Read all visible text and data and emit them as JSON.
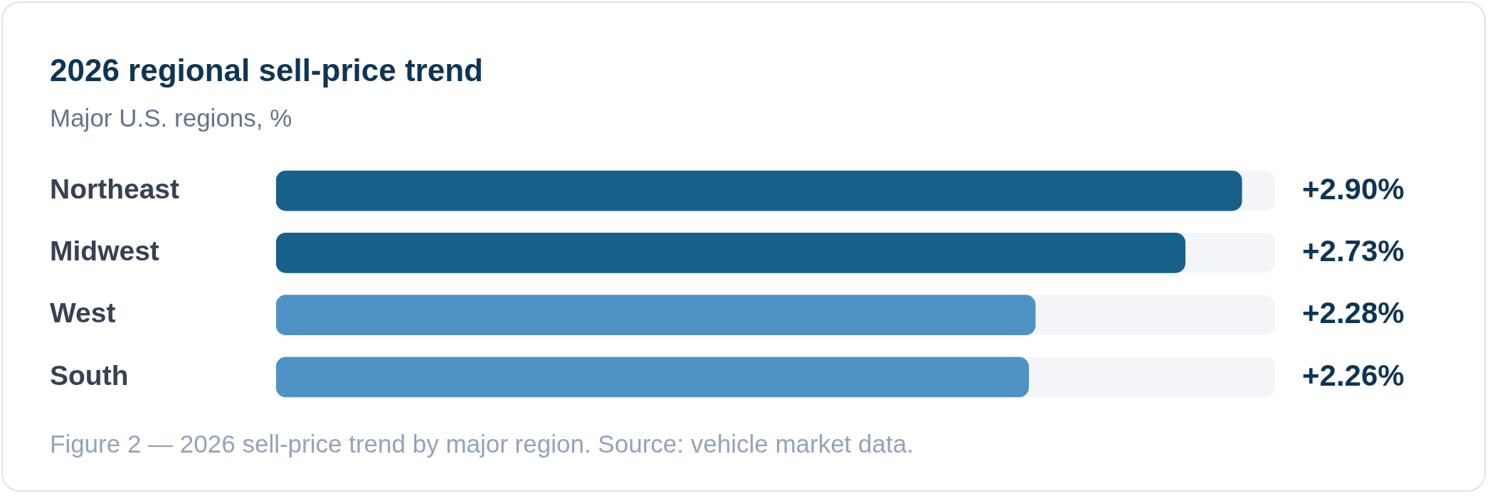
{
  "chart_data": {
    "type": "bar",
    "orientation": "horizontal",
    "title": "2026 regional sell-price trend",
    "subtitle": "Major U.S. regions, %",
    "categories": [
      "Northeast",
      "Midwest",
      "West",
      "South"
    ],
    "values": [
      2.9,
      2.73,
      2.28,
      2.26
    ],
    "colors": [
      "#17608a",
      "#17608a",
      "#4f93c4",
      "#4f93c4"
    ],
    "value_labels": [
      "+2.90%",
      "+2.73%",
      "+2.28%",
      "+2.26%"
    ],
    "xlim": [
      0,
      3
    ],
    "tick_labels": "y",
    "annotations": [
      "Figure 2 — 2026 sell-price trend by major region. Source: vehicle market data."
    ]
  }
}
